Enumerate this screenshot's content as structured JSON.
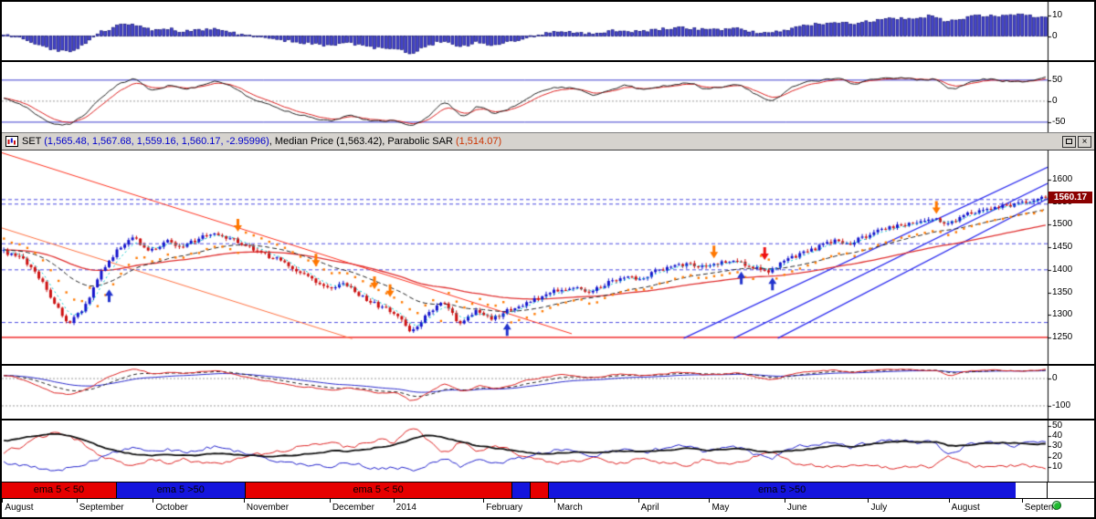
{
  "window": {
    "title_segments": [
      {
        "text": "SET ",
        "color": "#000000"
      },
      {
        "text": "(1,565.48, 1,567.68, 1,559.16, 1,560.17, -2.95996)",
        "color": "#0000cc"
      },
      {
        "text": ", Median Price (1,563.42), Parabolic SAR ",
        "color": "#000000"
      },
      {
        "text": "(1,514.07)",
        "color": "#cc3300"
      }
    ],
    "close_glyph": "×"
  },
  "price_tag": {
    "value": "1560.17",
    "bg": "#8b0000",
    "fg": "#ffffff"
  },
  "status_dot_color": "#1fbb2f",
  "x_axis": {
    "labels": [
      {
        "text": "August",
        "f": 0.003
      },
      {
        "text": "September",
        "f": 0.074
      },
      {
        "text": "October",
        "f": 0.147
      },
      {
        "text": "November",
        "f": 0.234
      },
      {
        "text": "December",
        "f": 0.316
      },
      {
        "text": "2014",
        "f": 0.377
      },
      {
        "text": "February",
        "f": 0.463
      },
      {
        "text": "March",
        "f": 0.531
      },
      {
        "text": "April",
        "f": 0.611
      },
      {
        "text": "May",
        "f": 0.679
      },
      {
        "text": "June",
        "f": 0.751
      },
      {
        "text": "July",
        "f": 0.831
      },
      {
        "text": "August",
        "f": 0.908
      },
      {
        "text": "Septem",
        "f": 0.978
      }
    ]
  },
  "ribbon": {
    "text_color": "#000000",
    "segments": [
      {
        "from": 0.0,
        "to": 0.109,
        "color": "#e60000",
        "label": "ema 5 < 50"
      },
      {
        "from": 0.109,
        "to": 0.232,
        "color": "#1515dd",
        "label": "ema 5 >50"
      },
      {
        "from": 0.232,
        "to": 0.487,
        "color": "#e60000",
        "label": "ema 5 < 50"
      },
      {
        "from": 0.487,
        "to": 0.505,
        "color": "#1515dd",
        "label": ""
      },
      {
        "from": 0.505,
        "to": 0.522,
        "color": "#e60000",
        "label": ""
      },
      {
        "from": 0.522,
        "to": 0.969,
        "color": "#1515dd",
        "label": "ema 5 >50"
      }
    ]
  },
  "chart_data": [
    {
      "id": "histogram-oscillator",
      "type": "bar",
      "ylabel_ticks": [
        10,
        0
      ],
      "ylim": [
        -12,
        17
      ],
      "bar_color": "#4444cc",
      "values": [
        1,
        -1,
        -4,
        -7,
        -8,
        -4,
        2,
        5,
        6,
        3,
        4,
        2,
        3,
        4,
        2,
        0,
        -1,
        -2,
        -3,
        -4,
        -5,
        -3,
        -5,
        -6,
        -6,
        -9,
        -5,
        -2,
        -6,
        -3,
        -5,
        -3,
        -1,
        1,
        2,
        2,
        1,
        2,
        3,
        2,
        3,
        4,
        4,
        3,
        3,
        4,
        2,
        1,
        3,
        5,
        6,
        7,
        6,
        7,
        8,
        9,
        9,
        10,
        7,
        9,
        10,
        10,
        11,
        10,
        9
      ]
    },
    {
      "id": "oscillator",
      "type": "line",
      "ylabel_ticks": [
        50,
        0,
        -50
      ],
      "ylim": [
        -74,
        93
      ],
      "ref_lines": [
        50,
        -50
      ],
      "values": [
        10,
        -10,
        -40,
        -60,
        -55,
        -25,
        20,
        45,
        55,
        20,
        40,
        25,
        40,
        50,
        30,
        5,
        -10,
        -20,
        -35,
        -40,
        -50,
        -30,
        -45,
        -50,
        -45,
        -60,
        -30,
        5,
        -45,
        -5,
        -35,
        -15,
        10,
        25,
        35,
        30,
        10,
        30,
        40,
        25,
        35,
        40,
        45,
        25,
        35,
        40,
        15,
        -5,
        30,
        45,
        50,
        55,
        40,
        50,
        55,
        55,
        50,
        55,
        20,
        45,
        55,
        50,
        45,
        50,
        58
      ]
    },
    {
      "id": "set-price",
      "type": "candlestick",
      "symbol": "SET",
      "ohlc_last": {
        "open": 1565.48,
        "high": 1567.68,
        "low": 1559.16,
        "close": 1560.17,
        "change": -2.95996
      },
      "median_price": 1563.42,
      "parabolic_sar": 1514.07,
      "ylabel_ticks": [
        1600,
        1550,
        1500,
        1450,
        1400,
        1350,
        1300,
        1250
      ],
      "ylim": [
        1191,
        1665
      ],
      "close_series": [
        1440,
        1430,
        1395,
        1330,
        1278,
        1320,
        1400,
        1445,
        1470,
        1440,
        1465,
        1450,
        1470,
        1480,
        1470,
        1450,
        1435,
        1420,
        1400,
        1380,
        1355,
        1370,
        1340,
        1320,
        1305,
        1262,
        1300,
        1330,
        1280,
        1310,
        1292,
        1310,
        1325,
        1340,
        1355,
        1360,
        1350,
        1370,
        1385,
        1380,
        1395,
        1405,
        1415,
        1405,
        1415,
        1420,
        1405,
        1395,
        1420,
        1435,
        1450,
        1465,
        1460,
        1475,
        1490,
        1500,
        1505,
        1515,
        1500,
        1520,
        1535,
        1540,
        1545,
        1552,
        1560
      ],
      "h_dashed_levels": [
        1556,
        1546,
        1458,
        1400,
        1283
      ],
      "h_solid_level": 1250,
      "trend_lines": [
        {
          "x1": 0.0,
          "p1": 1660,
          "x2": 0.545,
          "p2": 1258,
          "color": "#ff3320",
          "w": 1
        },
        {
          "x1": 0.0,
          "p1": 1493,
          "x2": 0.335,
          "p2": 1247,
          "color": "#ff7040",
          "w": 1
        },
        {
          "x1": 0.652,
          "p1": 1248,
          "x2": 1.0,
          "p2": 1628,
          "color": "#2b2bee",
          "w": 1.2
        },
        {
          "x1": 0.7,
          "p1": 1248,
          "x2": 1.0,
          "p2": 1592,
          "color": "#2b2bee",
          "w": 1.2
        },
        {
          "x1": 0.742,
          "p1": 1248,
          "x2": 1.0,
          "p2": 1558,
          "color": "#2b2bee",
          "w": 1.2
        }
      ],
      "arrows": [
        {
          "f": 0.1,
          "dir": "up",
          "color": "#2233cc"
        },
        {
          "f": 0.225,
          "dir": "down",
          "color": "#ff7700"
        },
        {
          "f": 0.3,
          "dir": "down",
          "color": "#ff7700"
        },
        {
          "f": 0.356,
          "dir": "down",
          "color": "#ff7700"
        },
        {
          "f": 0.372,
          "dir": "down",
          "color": "#ff7700"
        },
        {
          "f": 0.484,
          "dir": "up",
          "color": "#2233cc"
        },
        {
          "f": 0.681,
          "dir": "down",
          "color": "#ff7700"
        },
        {
          "f": 0.706,
          "dir": "up",
          "color": "#2233cc"
        },
        {
          "f": 0.73,
          "dir": "down",
          "color": "#ee1111"
        },
        {
          "f": 0.738,
          "dir": "up",
          "color": "#2233cc"
        },
        {
          "f": 0.895,
          "dir": "down",
          "color": "#ff7700"
        }
      ]
    },
    {
      "id": "momentum",
      "type": "line",
      "ylabel_ticks": [
        0,
        -100
      ],
      "ylim": [
        -147,
        47
      ],
      "values": [
        10,
        -5,
        -30,
        -55,
        -60,
        -35,
        0,
        25,
        35,
        15,
        25,
        15,
        25,
        30,
        15,
        0,
        -10,
        -20,
        -30,
        -35,
        -45,
        -30,
        -45,
        -55,
        -50,
        -90,
        -45,
        -10,
        -55,
        -20,
        -40,
        -25,
        -5,
        5,
        15,
        12,
        0,
        12,
        20,
        10,
        18,
        22,
        25,
        12,
        18,
        22,
        5,
        -10,
        15,
        25,
        30,
        32,
        22,
        30,
        33,
        35,
        30,
        33,
        5,
        28,
        33,
        30,
        28,
        30,
        35
      ]
    },
    {
      "id": "dmi",
      "type": "line",
      "ylabel_ticks": [
        50,
        40,
        30,
        20,
        10
      ],
      "ylim": [
        -4,
        55
      ],
      "series": [
        {
          "name": "black",
          "color": "#111111",
          "values": [
            35,
            38,
            41,
            43,
            40,
            34,
            28,
            24,
            22,
            21,
            22,
            21,
            22,
            23,
            22,
            21,
            20,
            21,
            22,
            24,
            26,
            25,
            27,
            30,
            32,
            38,
            42,
            38,
            34,
            30,
            28,
            26,
            24,
            23,
            24,
            25,
            24,
            25,
            26,
            25,
            26,
            27,
            28,
            26,
            27,
            28,
            26,
            24,
            25,
            27,
            29,
            31,
            30,
            32,
            34,
            35,
            34,
            35,
            30,
            31,
            33,
            34,
            33,
            32,
            33
          ]
        },
        {
          "name": "red",
          "color": "#dd2222",
          "values": [
            25,
            30,
            38,
            44,
            40,
            30,
            20,
            14,
            12,
            18,
            14,
            18,
            14,
            12,
            16,
            20,
            24,
            26,
            30,
            32,
            35,
            28,
            33,
            36,
            34,
            50,
            35,
            22,
            36,
            25,
            32,
            26,
            20,
            17,
            14,
            16,
            20,
            16,
            13,
            18,
            15,
            13,
            12,
            18,
            15,
            13,
            20,
            25,
            16,
            12,
            11,
            10,
            14,
            11,
            10,
            9,
            11,
            10,
            20,
            13,
            10,
            11,
            12,
            11,
            9
          ]
        },
        {
          "name": "blue",
          "color": "#2222cc",
          "values": [
            14,
            12,
            9,
            7,
            9,
            14,
            20,
            26,
            30,
            24,
            28,
            24,
            28,
            30,
            26,
            22,
            18,
            16,
            13,
            12,
            10,
            15,
            11,
            9,
            10,
            7,
            12,
            20,
            10,
            17,
            12,
            16,
            20,
            24,
            27,
            25,
            20,
            24,
            28,
            23,
            27,
            29,
            31,
            24,
            28,
            30,
            22,
            17,
            26,
            31,
            33,
            35,
            29,
            33,
            35,
            36,
            33,
            35,
            22,
            31,
            35,
            33,
            31,
            33,
            36
          ]
        }
      ]
    }
  ]
}
